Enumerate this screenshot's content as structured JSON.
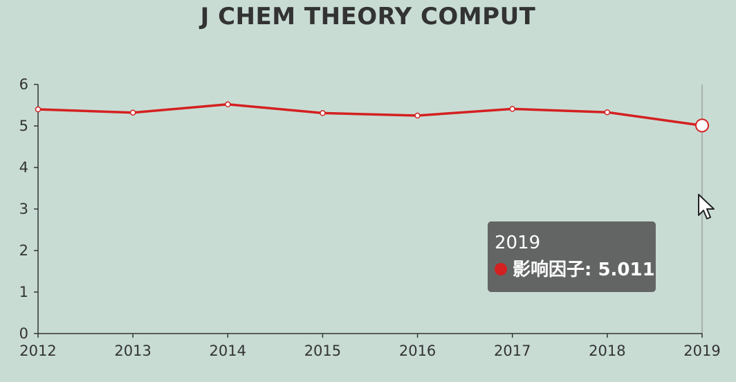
{
  "colors": {
    "background": "#c8dcd4",
    "line": "#d42020",
    "axis": "#333333",
    "tooltip_bg": "#5a5a5a"
  },
  "chart_data": {
    "type": "line",
    "title": "J CHEM THEORY COMPUT",
    "x": [
      "2012",
      "2013",
      "2014",
      "2015",
      "2016",
      "2017",
      "2018",
      "2019"
    ],
    "series": [
      {
        "name": "影响因子",
        "values": [
          5.4,
          5.32,
          5.52,
          5.31,
          5.25,
          5.41,
          5.33,
          5.011
        ]
      }
    ],
    "y_ticks": [
      "0",
      "1",
      "2",
      "3",
      "4",
      "5",
      "6"
    ],
    "ylim": [
      0,
      6
    ],
    "grid": false,
    "highlighted_index": 7
  },
  "tooltip": {
    "title": "2019",
    "series_label": "影响因子",
    "value": "5.011",
    "text": "影响因子: 5.011"
  },
  "cursor_icon": "pointer-arrow-icon"
}
